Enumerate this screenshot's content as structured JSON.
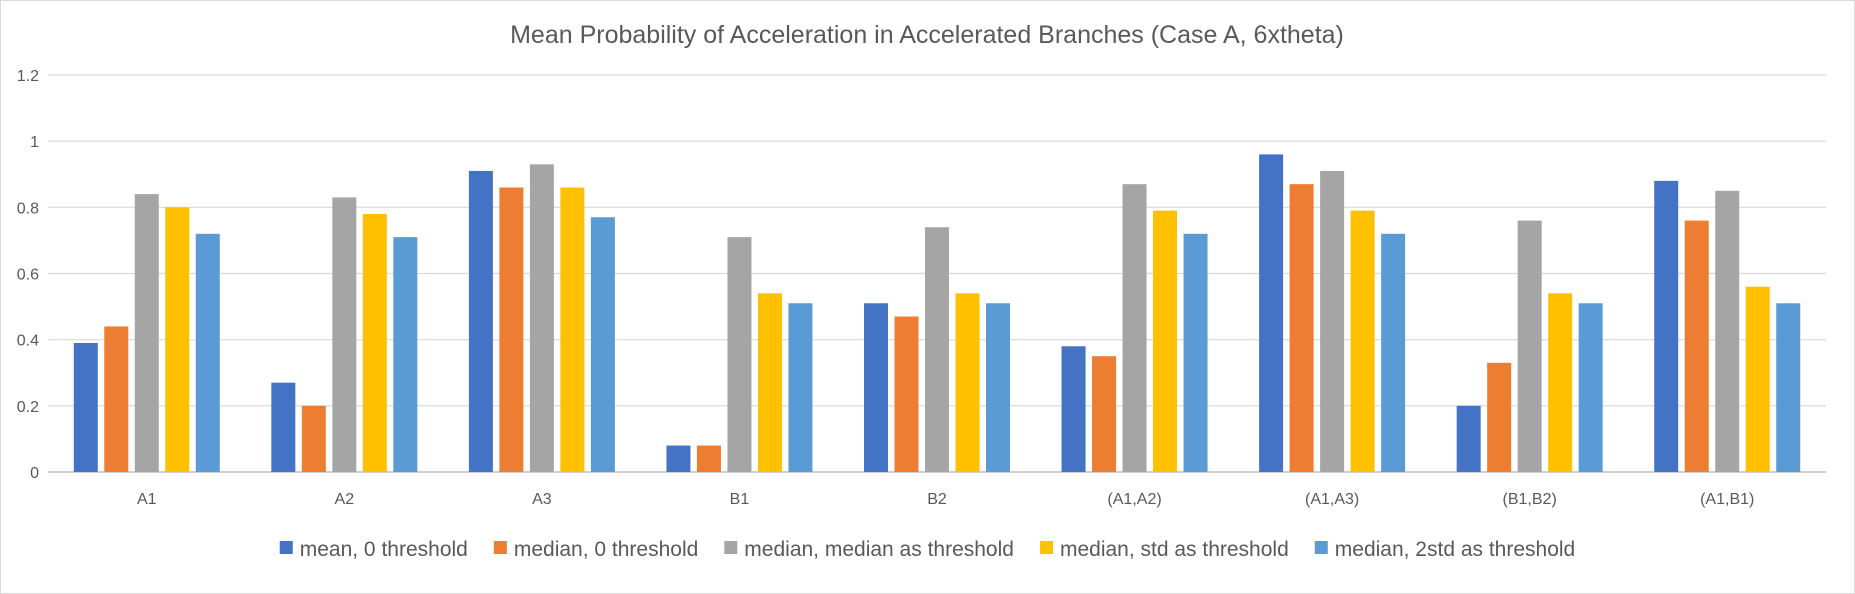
{
  "chart_data": {
    "type": "bar",
    "title": "Mean Probability of Acceleration in Accelerated Branches (Case A, 6xtheta)",
    "xlabel": "",
    "ylabel": "",
    "ylim": [
      0,
      1.2
    ],
    "yticks": [
      "0",
      "0.2",
      "0.4",
      "0.6",
      "0.8",
      "1",
      "1.2"
    ],
    "grid": true,
    "legend_position": "bottom",
    "categories": [
      "A1",
      "A2",
      "A3",
      "B1",
      "B2",
      "(A1,A2)",
      "(A1,A3)",
      "(B1,B2)",
      "(A1,B1)"
    ],
    "series": [
      {
        "name": "mean, 0 threshold",
        "color": "#4472C4",
        "values": [
          0.39,
          0.27,
          0.91,
          0.08,
          0.51,
          0.38,
          0.96,
          0.2,
          0.88
        ]
      },
      {
        "name": "median, 0 threshold",
        "color": "#ED7D31",
        "values": [
          0.44,
          0.2,
          0.86,
          0.08,
          0.47,
          0.35,
          0.87,
          0.33,
          0.76
        ]
      },
      {
        "name": "median, median as threshold",
        "color": "#A5A5A5",
        "values": [
          0.84,
          0.83,
          0.93,
          0.71,
          0.74,
          0.87,
          0.91,
          0.76,
          0.85
        ]
      },
      {
        "name": "median, std as threshold",
        "color": "#FFC000",
        "values": [
          0.8,
          0.78,
          0.86,
          0.54,
          0.54,
          0.79,
          0.79,
          0.54,
          0.56
        ]
      },
      {
        "name": "median, 2std as threshold",
        "color": "#5B9BD5",
        "values": [
          0.72,
          0.71,
          0.77,
          0.51,
          0.51,
          0.72,
          0.72,
          0.51,
          0.51
        ]
      }
    ]
  }
}
